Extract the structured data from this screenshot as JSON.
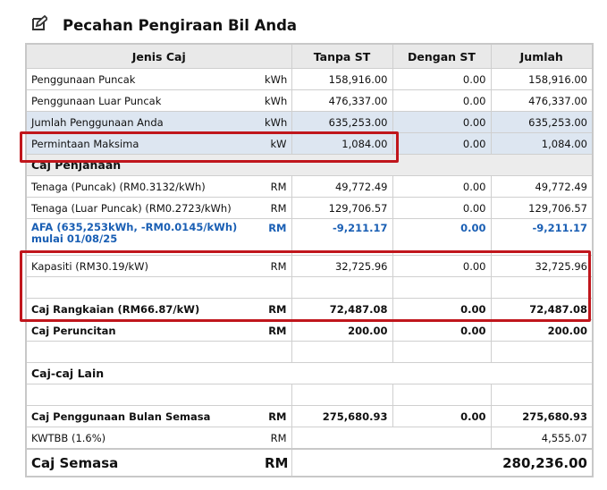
{
  "header": {
    "title": "Pecahan Pengiraan Bil Anda"
  },
  "table": {
    "columns": [
      "Jenis Caj",
      "Tanpa ST",
      "Dengan ST",
      "Jumlah"
    ],
    "rows": [
      {
        "label": "Penggunaan Puncak",
        "unit": "kWh",
        "tanpa_st": "158,916.00",
        "dengan_st": "0.00",
        "jumlah": "158,916.00"
      },
      {
        "label": "Penggunaan Luar Puncak",
        "unit": "kWh",
        "tanpa_st": "476,337.00",
        "dengan_st": "0.00",
        "jumlah": "476,337.00"
      },
      {
        "label": "Jumlah Penggunaan Anda",
        "unit": "kWh",
        "tanpa_st": "635,253.00",
        "dengan_st": "0.00",
        "jumlah": "635,253.00"
      },
      {
        "label": "Permintaan Maksima",
        "unit": "kW",
        "tanpa_st": "1,084.00",
        "dengan_st": "0.00",
        "jumlah": "1,084.00"
      },
      {
        "label": "Caj Penjanaan"
      },
      {
        "label": "Tenaga (Puncak) (RM0.3132/kWh)",
        "unit": "RM",
        "tanpa_st": "49,772.49",
        "dengan_st": "0.00",
        "jumlah": "49,772.49"
      },
      {
        "label": "Tenaga (Luar Puncak) (RM0.2723/kWh)",
        "unit": "RM",
        "tanpa_st": "129,706.57",
        "dengan_st": "0.00",
        "jumlah": "129,706.57"
      },
      {
        "label": "AFA (635,253kWh, -RM0.0145/kWh) mulai 01/08/25",
        "unit": "RM",
        "tanpa_st": "-9,211.17",
        "dengan_st": "0.00",
        "jumlah": "-9,211.17"
      },
      {
        "label": "Kapasiti (RM30.19/kW)",
        "unit": "RM",
        "tanpa_st": "32,725.96",
        "dengan_st": "0.00",
        "jumlah": "32,725.96"
      },
      {
        "label": "Caj Rangkaian (RM66.87/kW)",
        "unit": "RM",
        "tanpa_st": "72,487.08",
        "dengan_st": "0.00",
        "jumlah": "72,487.08"
      },
      {
        "label": "Caj Peruncitan",
        "unit": "RM",
        "tanpa_st": "200.00",
        "dengan_st": "0.00",
        "jumlah": "200.00"
      },
      {
        "label": "Caj-caj Lain"
      },
      {
        "label": "Caj Penggunaan Bulan Semasa",
        "unit": "RM",
        "tanpa_st": "275,680.93",
        "dengan_st": "0.00",
        "jumlah": "275,680.93"
      },
      {
        "label": "KWTBB (1.6%)",
        "unit": "RM",
        "jumlah": "4,555.07"
      },
      {
        "label": "Caj Semasa",
        "unit": "RM",
        "jumlah": "280,236.00"
      }
    ]
  }
}
